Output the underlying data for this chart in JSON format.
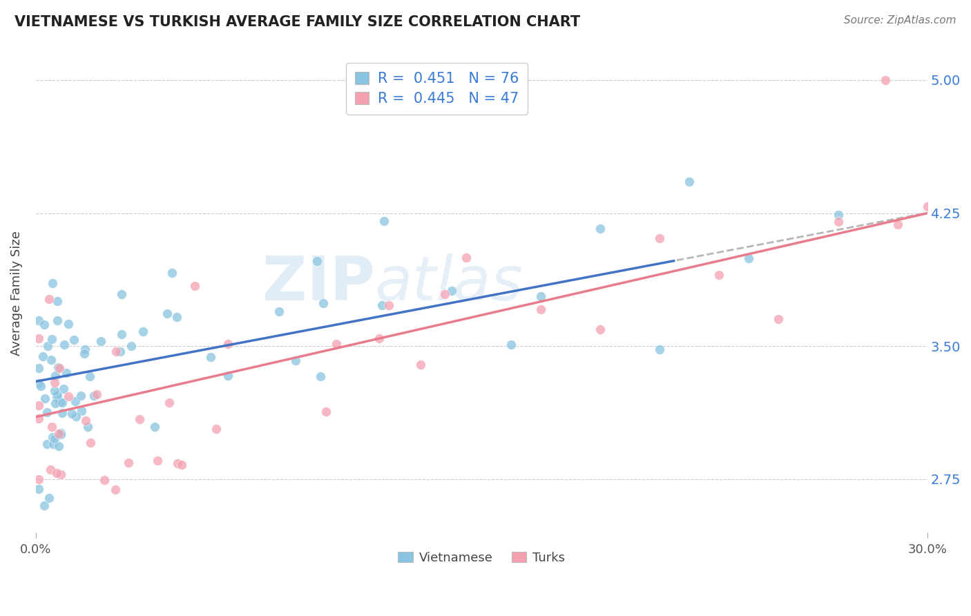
{
  "title": "VIETNAMESE VS TURKISH AVERAGE FAMILY SIZE CORRELATION CHART",
  "source": "Source: ZipAtlas.com",
  "ylabel": "Average Family Size",
  "xlim": [
    0.0,
    0.3
  ],
  "ylim": [
    2.45,
    5.15
  ],
  "yticks": [
    2.75,
    3.5,
    4.25,
    5.0
  ],
  "background_color": "#ffffff",
  "grid_color": "#cccccc",
  "viet_color": "#89c4e1",
  "turk_color": "#f4a0b0",
  "viet_line_color": "#4472c4",
  "turk_line_color": "#e87c8d",
  "viet_R": "0.451",
  "viet_N": "76",
  "turk_R": "0.445",
  "turk_N": "47",
  "legend_R_color": "#222222",
  "legend_N_color": "#3a7bd5",
  "viet_line_intercept": 3.3,
  "viet_line_slope": 3.17,
  "turk_line_intercept": 3.1,
  "turk_line_slope": 3.83,
  "viet_line_solid_end": 0.215,
  "turk_line_solid_end": 0.3
}
